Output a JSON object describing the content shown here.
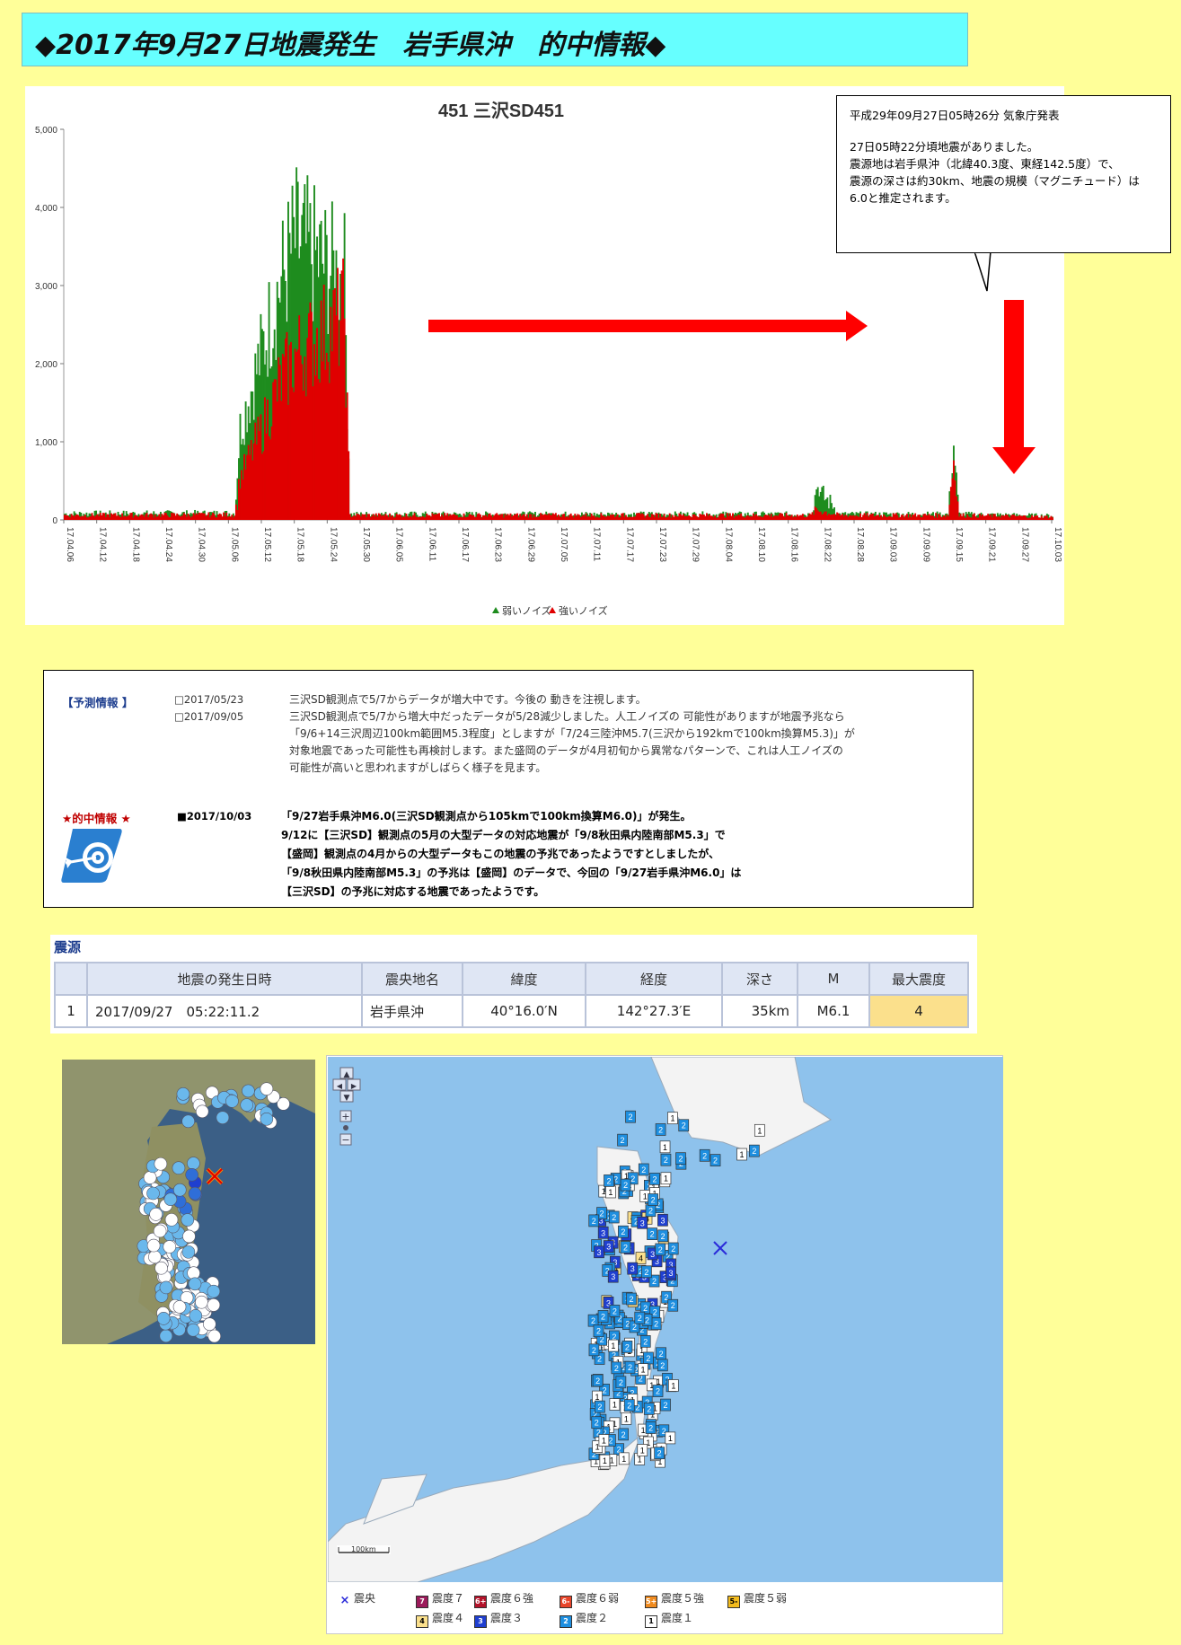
{
  "page_title": "◆2017年9月27日地震発生　岩手県沖　的中情報◆",
  "callout": {
    "line1": "平成29年09月27日05時26分 気象庁発表",
    "line2": "27日05時22分頃地震がありました。",
    "line3": "震源地は岩手県沖（北緯40.3度、東経142.5度）で、",
    "line4": "震源の深さは約30km、地震の規模（マグニチュード）は",
    "line5": "6.0と推定されます。"
  },
  "chart_data": {
    "type": "area",
    "title": "451 三沢SD451",
    "ylim": [
      0,
      5000
    ],
    "yticks": [
      "0",
      "1,000",
      "2,000",
      "3,000",
      "4,000",
      "5,000"
    ],
    "xticks": [
      "17.04.06",
      "17.04.12",
      "17.04.18",
      "17.04.24",
      "17.04.30",
      "17.05.06",
      "17.05.12",
      "17.05.18",
      "17.05.24",
      "17.05.30",
      "17.06.05",
      "17.06.11",
      "17.06.17",
      "17.06.23",
      "17.06.29",
      "17.07.05",
      "17.07.11",
      "17.07.17",
      "17.07.23",
      "17.07.29",
      "17.08.04",
      "17.08.10",
      "17.08.16",
      "17.08.22",
      "17.08.28",
      "17.09.03",
      "17.09.09",
      "17.09.15",
      "17.09.21",
      "17.09.27",
      "17.10.03"
    ],
    "legend": [
      "弱いノイズ",
      "強いノイズ"
    ],
    "legend_position": "bottom",
    "series": [
      {
        "name": "弱いノイズ",
        "color": "#1e8c1e",
        "points": [
          [
            "17.04.06",
            120
          ],
          [
            "17.05.07",
            130
          ],
          [
            "17.05.08",
            1500
          ],
          [
            "17.05.12",
            2800
          ],
          [
            "17.05.15",
            3800
          ],
          [
            "17.05.18",
            4600
          ],
          [
            "17.05.22",
            4300
          ],
          [
            "17.05.26",
            4000
          ],
          [
            "17.05.27",
            4000
          ],
          [
            "17.05.28",
            110
          ],
          [
            "17.08.20",
            110
          ],
          [
            "17.08.21",
            560
          ],
          [
            "17.08.24",
            300
          ],
          [
            "17.08.25",
            110
          ],
          [
            "17.09.14",
            110
          ],
          [
            "17.09.15",
            1220
          ],
          [
            "17.09.16",
            110
          ],
          [
            "17.10.03",
            80
          ]
        ]
      },
      {
        "name": "強いノイズ",
        "color": "#e00000",
        "points": [
          [
            "17.04.06",
            90
          ],
          [
            "17.05.07",
            100
          ],
          [
            "17.05.08",
            700
          ],
          [
            "17.05.12",
            1500
          ],
          [
            "17.05.15",
            2200
          ],
          [
            "17.05.18",
            2700
          ],
          [
            "17.05.22",
            3000
          ],
          [
            "17.05.26",
            3300
          ],
          [
            "17.05.27",
            3400
          ],
          [
            "17.05.28",
            90
          ],
          [
            "17.08.20",
            90
          ],
          [
            "17.08.21",
            200
          ],
          [
            "17.08.24",
            120
          ],
          [
            "17.08.25",
            90
          ],
          [
            "17.09.14",
            90
          ],
          [
            "17.09.15",
            1000
          ],
          [
            "17.09.16",
            90
          ],
          [
            "17.10.03",
            60
          ]
        ]
      }
    ]
  },
  "forecast": {
    "label": "【予測情報 】",
    "entries": [
      {
        "date": "□2017/05/23",
        "text": "三沢SD観測点で5/7からデータが増大中です。今後の 動きを注視します。"
      },
      {
        "date": "□2017/09/05",
        "text": "三沢SD観測点で5/7から増大中だったデータが5/28減少しました。人工ノイズの 可能性がありますが地震予兆なら"
      }
    ],
    "continuation": [
      "「9/6+14三沢周辺100km範囲M5.3程度」としますが「7/24三陸沖M5.7(三沢から192kmで100km換算M5.3)」が",
      "対象地震であった可能性も再検討します。また盛岡のデータが4月初旬から異常なパターンで、これは人工ノイズの",
      "可能性が高いと思われますがしばらく様子を見ます。"
    ],
    "hit_label": "★的中情報 ★",
    "hit_date": "■2017/10/03",
    "hit_lines": [
      "「9/27岩手県沖M6.0(三沢SD観測点から105kmで100km換算M6.0)」が発生。",
      "9/12に【三沢SD】観測点の5月の大型データの対応地震が「9/8秋田県内陸南部M5.3」で",
      "【盛岡】観測点の4月からの大型データもこの地震の予兆であったようですとしましたが、",
      "「9/8秋田県内陸南部M5.3」の予兆は【盛岡】のデータで、今回の「9/27岩手県沖M6.0」は",
      "【三沢SD】の予兆に対応する地震であったようです。"
    ]
  },
  "epicenter": {
    "heading": "震源",
    "headers": [
      "",
      "地震の発生日時",
      "震央地名",
      "緯度",
      "経度",
      "深さ",
      "M",
      "最大震度"
    ],
    "row": [
      "1",
      "2017/09/27　05:22:11.2",
      "岩手県沖",
      "40°16.0′N",
      "142°27.3′E",
      "35km",
      "M6.1",
      "4"
    ]
  },
  "map": {
    "zoom_controls": [
      "▲",
      "◀",
      "▶",
      "▼",
      "+",
      "−"
    ],
    "scale": "100km",
    "legend": [
      {
        "mark": "×",
        "label": "震央",
        "color": "#2b2bd9"
      },
      {
        "mark": "7",
        "label": "震度７",
        "color": "#9b1a5a"
      },
      {
        "mark": "6+",
        "label": "震度６強",
        "color": "#b3122a"
      },
      {
        "mark": "6-",
        "label": "震度６弱",
        "color": "#e8452a"
      },
      {
        "mark": "5+",
        "label": "震度５強",
        "color": "#ef8a1e"
      },
      {
        "mark": "5-",
        "label": "震度５弱",
        "color": "#f2bb1e"
      },
      {
        "mark": "4",
        "label": "震度４",
        "color": "#fbe08c"
      },
      {
        "mark": "3",
        "label": "震度３",
        "color": "#1f3fd0"
      },
      {
        "mark": "2",
        "label": "震度２",
        "color": "#1e8fe0"
      },
      {
        "mark": "1",
        "label": "震度１",
        "color": "#ffffff"
      }
    ]
  }
}
